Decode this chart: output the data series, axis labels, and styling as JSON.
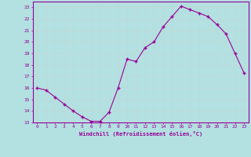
{
  "x": [
    0,
    1,
    2,
    3,
    4,
    5,
    6,
    7,
    8,
    9,
    10,
    11,
    12,
    13,
    14,
    15,
    16,
    17,
    18,
    19,
    20,
    21,
    22,
    23
  ],
  "y": [
    16.0,
    15.8,
    15.2,
    14.6,
    14.0,
    13.5,
    13.1,
    13.1,
    13.9,
    16.0,
    18.5,
    18.3,
    19.5,
    20.0,
    21.3,
    22.2,
    23.1,
    22.8,
    22.5,
    22.2,
    21.5,
    20.7,
    19.0,
    17.3
  ],
  "line_color": "#990099",
  "marker_color": "#990099",
  "bg_color": "#b3e0e0",
  "grid_color": "#c0d8d8",
  "xlabel": "Windchill (Refroidissement éolien,°C)",
  "ylabel": "",
  "xlim": [
    -0.5,
    23.5
  ],
  "ylim": [
    13,
    23.5
  ],
  "yticks": [
    13,
    14,
    15,
    16,
    17,
    18,
    19,
    20,
    21,
    22,
    23
  ],
  "xticks": [
    0,
    1,
    2,
    3,
    4,
    5,
    6,
    7,
    8,
    9,
    10,
    11,
    12,
    13,
    14,
    15,
    16,
    17,
    18,
    19,
    20,
    21,
    22,
    23
  ],
  "xlabel_color": "#990099",
  "tick_color": "#990099",
  "axis_color": "#990099"
}
